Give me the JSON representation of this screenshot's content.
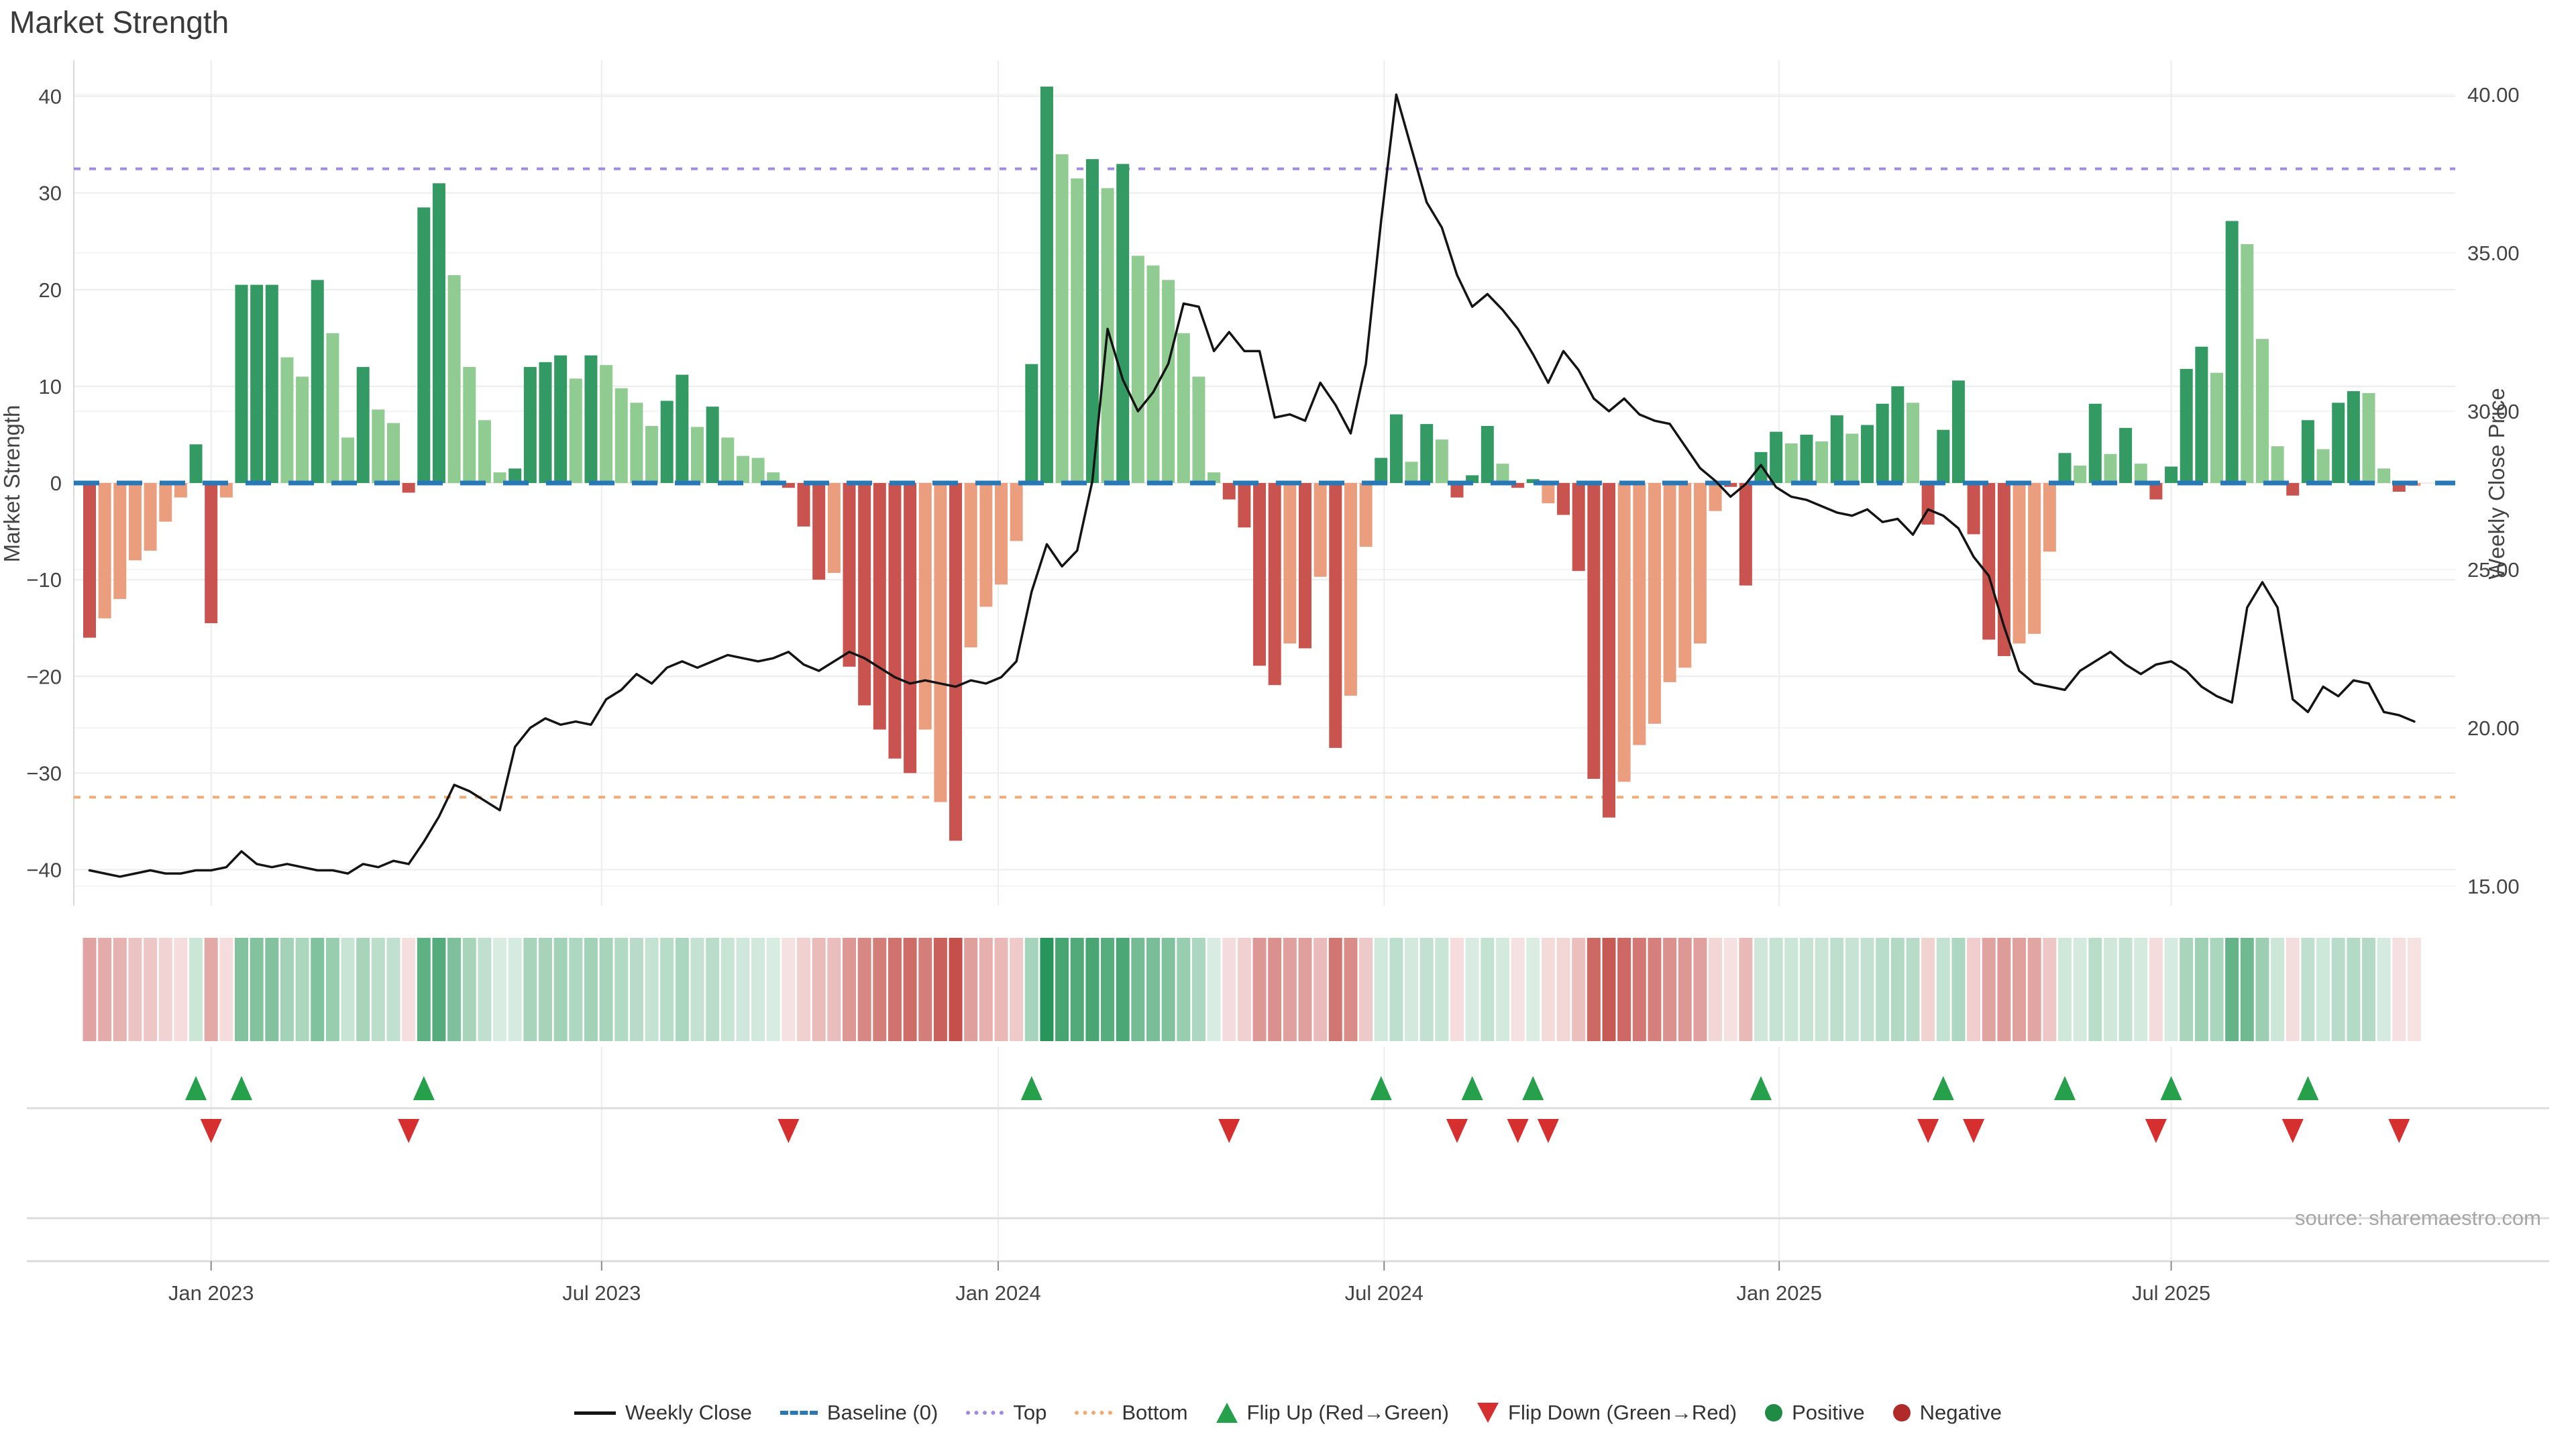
{
  "title": "Market Strength",
  "source": "source: sharemaestro.com",
  "axes": {
    "left": {
      "title": "Market Strength",
      "ticks": [
        "40",
        "30",
        "20",
        "10",
        "0",
        "−10",
        "−20",
        "−30",
        "−40"
      ],
      "tick_values": [
        40,
        30,
        20,
        10,
        0,
        -10,
        -20,
        -30,
        -40
      ]
    },
    "right": {
      "title": "Weekly Close Price",
      "ticks": [
        "40.00",
        "35.00",
        "30.00",
        "25.00",
        "20.00",
        "15.00"
      ],
      "tick_values": [
        40,
        35,
        30,
        25,
        20,
        15
      ]
    },
    "x": {
      "ticks": [
        {
          "label": "Jan 2023",
          "week": 8
        },
        {
          "label": "Jul 2023",
          "week": 33.7
        },
        {
          "label": "Jan 2024",
          "week": 59.8
        },
        {
          "label": "Jul 2024",
          "week": 85.2
        },
        {
          "label": "Jan 2025",
          "week": 111.2
        },
        {
          "label": "Jul 2025",
          "week": 137
        }
      ]
    }
  },
  "legend": {
    "items": [
      {
        "label": "Weekly Close",
        "swatch": "line"
      },
      {
        "label": "Baseline (0)",
        "swatch": "dash"
      },
      {
        "label": "Top",
        "swatch": "dot-purple"
      },
      {
        "label": "Bottom",
        "swatch": "dot-orange"
      },
      {
        "label": "Flip Up (Red→Green)",
        "swatch": "tri-up"
      },
      {
        "label": "Flip Down (Green→Red)",
        "swatch": "tri-down"
      },
      {
        "label": "Positive",
        "swatch": "circ-green"
      },
      {
        "label": "Negative",
        "swatch": "circ-red"
      }
    ]
  },
  "colors": {
    "bar_pos_dark": "#349a64",
    "bar_pos_light": "#90cb92",
    "bar_neg_dark": "#c9534f",
    "bar_neg_light": "#eb9e7e",
    "baseline": "#2878b8",
    "top_line": "#a18ae0",
    "bottom_line": "#f2a973",
    "price_line": "#141414",
    "flip_up": "#26a04a",
    "flip_down": "#d62f2f",
    "grid": "#ececec",
    "divider": "#dcdcdc",
    "tick_text": "#444444"
  },
  "chart_data": {
    "type": "bar+line+heatmap",
    "title": "Market Strength",
    "x_unit": "weeks (Nov 2022 – Oct 2025)",
    "ylabel_left": "Market Strength",
    "ylabel_right": "Weekly Close Price",
    "ylim_left": [
      -44,
      44
    ],
    "ylim_right": [
      13.3,
      41.1
    ],
    "reference_lines": {
      "baseline": 0,
      "top": 32.5,
      "bottom": -32.5
    },
    "series": [
      {
        "name": "Market Strength",
        "type": "bar",
        "axis": "left",
        "values": [
          -16,
          -14,
          -12,
          -8,
          -7,
          -4,
          -1.5,
          4,
          -14.5,
          -1.5,
          20.5,
          20.5,
          20.5,
          13,
          11,
          21,
          15.5,
          4.7,
          12,
          7.6,
          6.2,
          -1,
          28.5,
          31,
          21.5,
          12,
          6.5,
          1.1,
          1.5,
          12,
          12.5,
          13.2,
          10.8,
          13.2,
          12.2,
          9.8,
          8.3,
          5.9,
          8.5,
          11.2,
          5.8,
          7.9,
          4.7,
          2.8,
          2.6,
          1.1,
          -0.5,
          -4.5,
          -10,
          -9.3,
          -19,
          -23,
          -25.5,
          -28.5,
          -30,
          -25.5,
          -33,
          -37,
          -17,
          -12.8,
          -10.5,
          -6,
          12.3,
          41,
          34,
          31.5,
          33.5,
          30.5,
          33,
          23.5,
          22.5,
          21,
          15.5,
          11,
          1.1,
          -1.7,
          -4.6,
          -18.9,
          -20.9,
          -16.6,
          -17.1,
          -9.7,
          -27.4,
          -22,
          -6.6,
          2.6,
          7.1,
          2.2,
          6.1,
          4.5,
          -1.5,
          0.8,
          5.9,
          2,
          -0.5,
          0.4,
          -2.1,
          -3.3,
          -9.1,
          -30.6,
          -34.6,
          -30.9,
          -27.1,
          -24.9,
          -20.6,
          -19.1,
          -16.6,
          -2.9,
          -0.4,
          -10.6,
          3.2,
          5.3,
          4.1,
          5,
          4.3,
          7,
          5.1,
          6,
          8.2,
          10,
          8.3,
          -4.3,
          5.5,
          10.6,
          -5.3,
          -16.2,
          -17.9,
          -16.6,
          -15.6,
          -7.1,
          3.1,
          1.8,
          8.2,
          3,
          5.7,
          2,
          -1.7,
          1.7,
          11.8,
          14.1,
          11.4,
          27.1,
          24.7,
          14.9,
          3.8,
          -1.3,
          6.5,
          3.5,
          8.3,
          9.5,
          9.3,
          1.5,
          -0.9,
          -0.3
        ],
        "shades": "DLLLLLLDDLDDDLLDLLDLLDDDLLLLDDDDLDLLLLDDLDLLLLDDDLDDDDDLLDLLLLDDLLDLDLLLLLLDDDDLDLDLLDDLDLDDDLDDLDDDDLLLLLLLDDDDLDLDLDDDLDDDDDDLLLDLDLDLDDDDLDLLLDDLDDLLDL"
      },
      {
        "name": "Weekly Close",
        "type": "line",
        "axis": "right",
        "values": [
          15.5,
          15.4,
          15.3,
          15.4,
          15.5,
          15.4,
          15.4,
          15.5,
          15.5,
          15.6,
          16.1,
          15.7,
          15.6,
          15.7,
          15.6,
          15.5,
          15.5,
          15.4,
          15.7,
          15.6,
          15.8,
          15.7,
          16.4,
          17.2,
          18.2,
          18.0,
          17.7,
          17.4,
          19.4,
          20.0,
          20.3,
          20.1,
          20.2,
          20.1,
          20.9,
          21.2,
          21.7,
          21.4,
          21.9,
          22.1,
          21.9,
          22.1,
          22.3,
          22.2,
          22.1,
          22.2,
          22.4,
          22.0,
          21.8,
          22.1,
          22.4,
          22.2,
          21.9,
          21.6,
          21.4,
          21.5,
          21.4,
          21.3,
          21.5,
          21.4,
          21.6,
          22.1,
          24.3,
          25.8,
          25.1,
          25.6,
          27.8,
          32.6,
          31.0,
          30.0,
          30.6,
          31.5,
          33.4,
          33.3,
          31.9,
          32.5,
          31.9,
          31.9,
          29.8,
          29.9,
          29.7,
          30.9,
          30.2,
          29.3,
          31.5,
          36.0,
          40.0,
          38.3,
          36.6,
          35.8,
          34.3,
          33.3,
          33.7,
          33.2,
          32.6,
          31.8,
          30.9,
          31.9,
          31.3,
          30.4,
          30.0,
          30.4,
          29.9,
          29.7,
          29.6,
          28.9,
          28.2,
          27.8,
          27.3,
          27.7,
          28.3,
          27.6,
          27.3,
          27.2,
          27.0,
          26.8,
          26.7,
          26.9,
          26.5,
          26.6,
          26.1,
          26.9,
          26.7,
          26.3,
          25.4,
          24.8,
          23.2,
          21.8,
          21.4,
          21.3,
          21.2,
          21.8,
          22.1,
          22.4,
          22.0,
          21.7,
          22.0,
          22.1,
          21.8,
          21.3,
          21.0,
          20.8,
          23.8,
          24.6,
          23.8,
          20.9,
          20.5,
          21.3,
          21.0,
          21.5,
          21.4,
          20.5,
          20.4,
          20.2
        ]
      }
    ],
    "heatmap": {
      "note": "weekly strip colored by Market Strength value",
      "source_series": "Market Strength"
    },
    "flip_up_weeks": [
      7,
      10,
      22,
      62,
      85,
      91,
      95,
      110,
      122,
      130,
      137,
      146
    ],
    "flip_down_weeks": [
      8,
      21,
      46,
      75,
      90,
      94,
      96,
      121,
      124,
      136,
      145,
      152
    ]
  }
}
